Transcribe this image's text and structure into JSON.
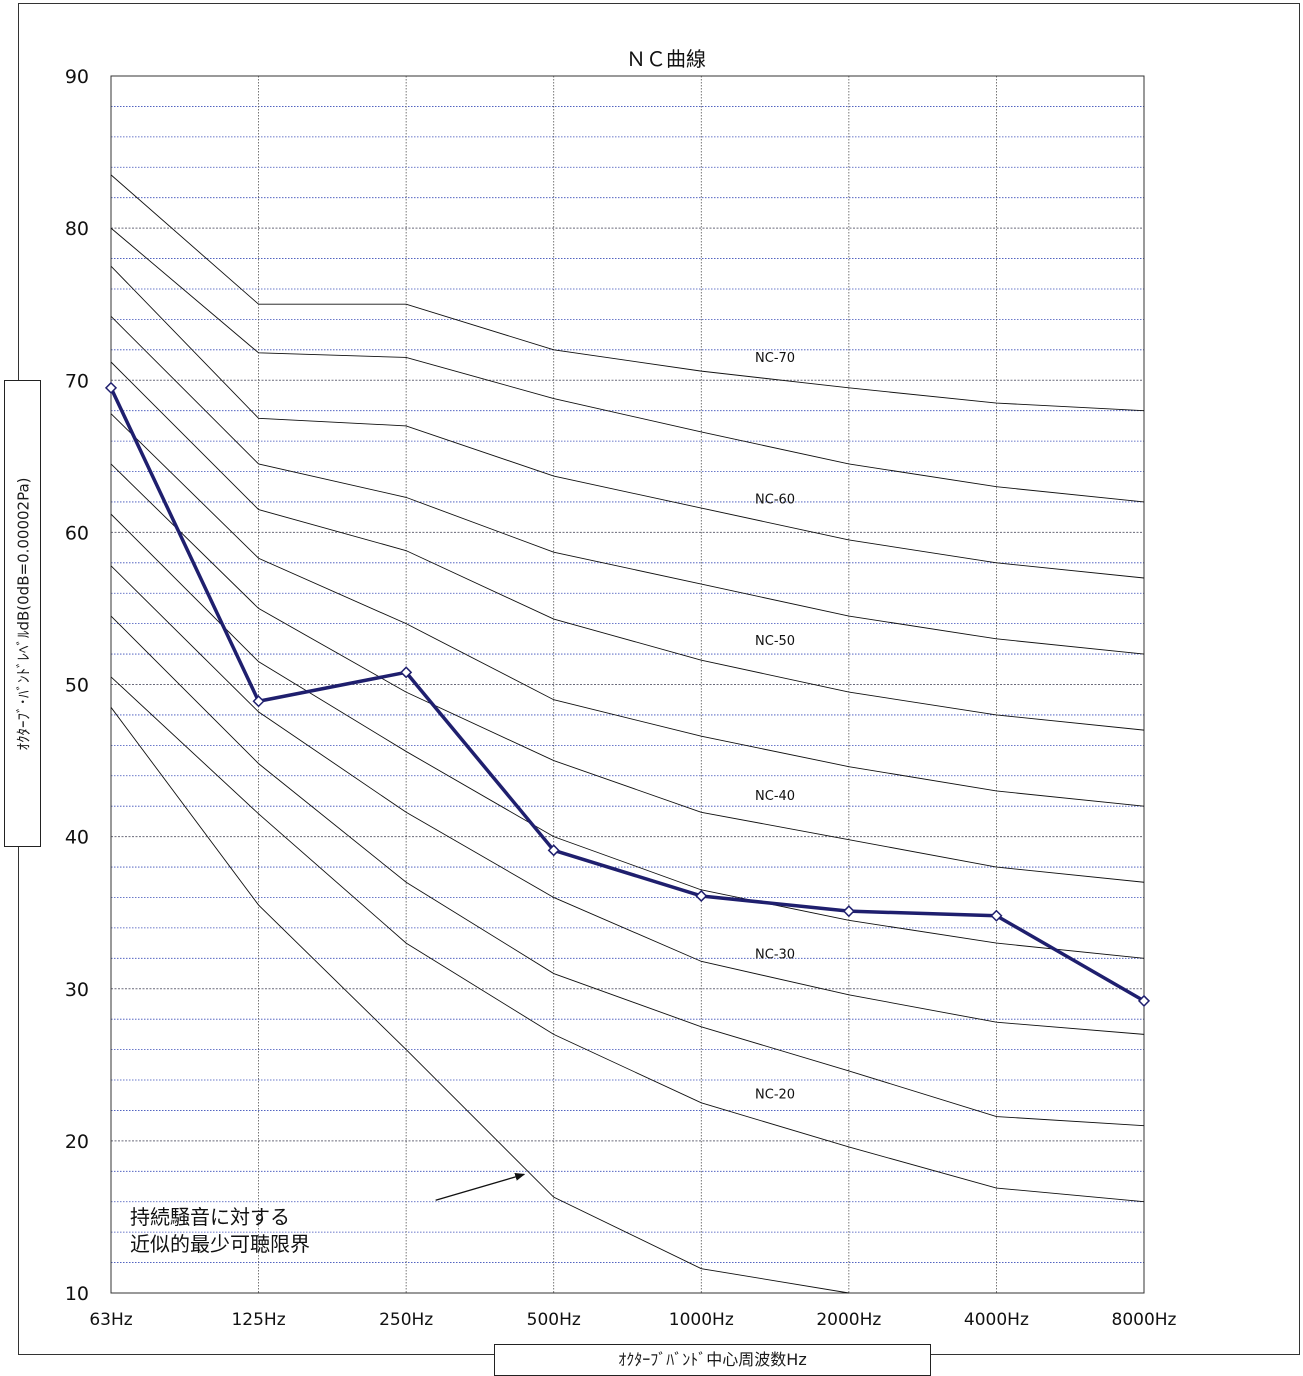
{
  "chart_data": {
    "type": "line",
    "title": "ＮＣ曲線",
    "xlabel": "ｵｸﾀｰﾌﾞﾊﾞﾝﾄﾞ中心周波数Hz",
    "ylabel": "ｵｸﾀｰﾌﾞ･ﾊﾞﾝﾄﾞﾚﾍﾞﾙdB(0dB=0.00002Pa)",
    "categories": [
      "63Hz",
      "125Hz",
      "250Hz",
      "500Hz",
      "1000Hz",
      "2000Hz",
      "4000Hz",
      "8000Hz"
    ],
    "ylim": [
      10,
      90
    ],
    "yticks": [
      10,
      20,
      30,
      40,
      50,
      60,
      70,
      80,
      90
    ],
    "minor_grid_step": 2,
    "grid": true,
    "nc_curves": [
      {
        "values": [
          48.5,
          35.5,
          26.0,
          16.3,
          11.6,
          10.0,
          null,
          null
        ]
      },
      {
        "values": [
          50.5,
          41.5,
          33.0,
          27.0,
          22.5,
          19.6,
          16.9,
          16.0
        ]
      },
      {
        "values": [
          54.5,
          44.8,
          37.0,
          31.0,
          27.5,
          24.6,
          21.6,
          21.0
        ]
      },
      {
        "values": [
          57.8,
          48.2,
          41.6,
          36.0,
          31.8,
          29.6,
          27.8,
          27.0
        ]
      },
      {
        "values": [
          61.2,
          51.5,
          45.6,
          40.0,
          36.5,
          34.5,
          33.0,
          32.0
        ]
      },
      {
        "values": [
          64.5,
          55.0,
          49.5,
          45.0,
          41.6,
          39.8,
          38.0,
          37.0
        ]
      },
      {
        "values": [
          67.8,
          58.3,
          54.0,
          49.0,
          46.6,
          44.6,
          43.0,
          42.0
        ]
      },
      {
        "values": [
          71.2,
          61.5,
          58.8,
          54.3,
          51.6,
          49.5,
          48.0,
          47.0
        ]
      },
      {
        "values": [
          74.2,
          64.5,
          62.3,
          58.7,
          56.6,
          54.5,
          53.0,
          52.0
        ]
      },
      {
        "values": [
          77.5,
          67.5,
          67.0,
          63.7,
          61.6,
          59.5,
          58.0,
          57.0
        ]
      },
      {
        "values": [
          80.0,
          71.8,
          71.5,
          68.8,
          66.6,
          64.5,
          63.0,
          62.0
        ]
      },
      {
        "values": [
          83.5,
          75.0,
          75.0,
          72.0,
          70.6,
          69.5,
          68.5,
          68.0
        ]
      }
    ],
    "curve_labels": [
      {
        "text": "NC-70",
        "x": 4.5,
        "y": 71.2
      },
      {
        "text": "NC-60",
        "x": 4.5,
        "y": 61.9
      },
      {
        "text": "NC-50",
        "x": 4.5,
        "y": 52.6
      },
      {
        "text": "NC-40",
        "x": 4.5,
        "y": 42.4
      },
      {
        "text": "NC-30",
        "x": 4.5,
        "y": 32.0
      },
      {
        "text": "NC-20",
        "x": 4.5,
        "y": 22.8
      }
    ],
    "series": [
      {
        "values": [
          69.5,
          48.9,
          50.8,
          39.1,
          36.1,
          35.1,
          34.8,
          29.2
        ],
        "color": "#1f1f6e"
      }
    ],
    "annotation": {
      "lines": [
        "持続騒音に対する",
        "近似的最少可聴限界"
      ],
      "arrow_from": {
        "x": 2.2,
        "y": 16.1
      },
      "arrow_to": {
        "x": 2.8,
        "y": 17.8
      }
    }
  }
}
